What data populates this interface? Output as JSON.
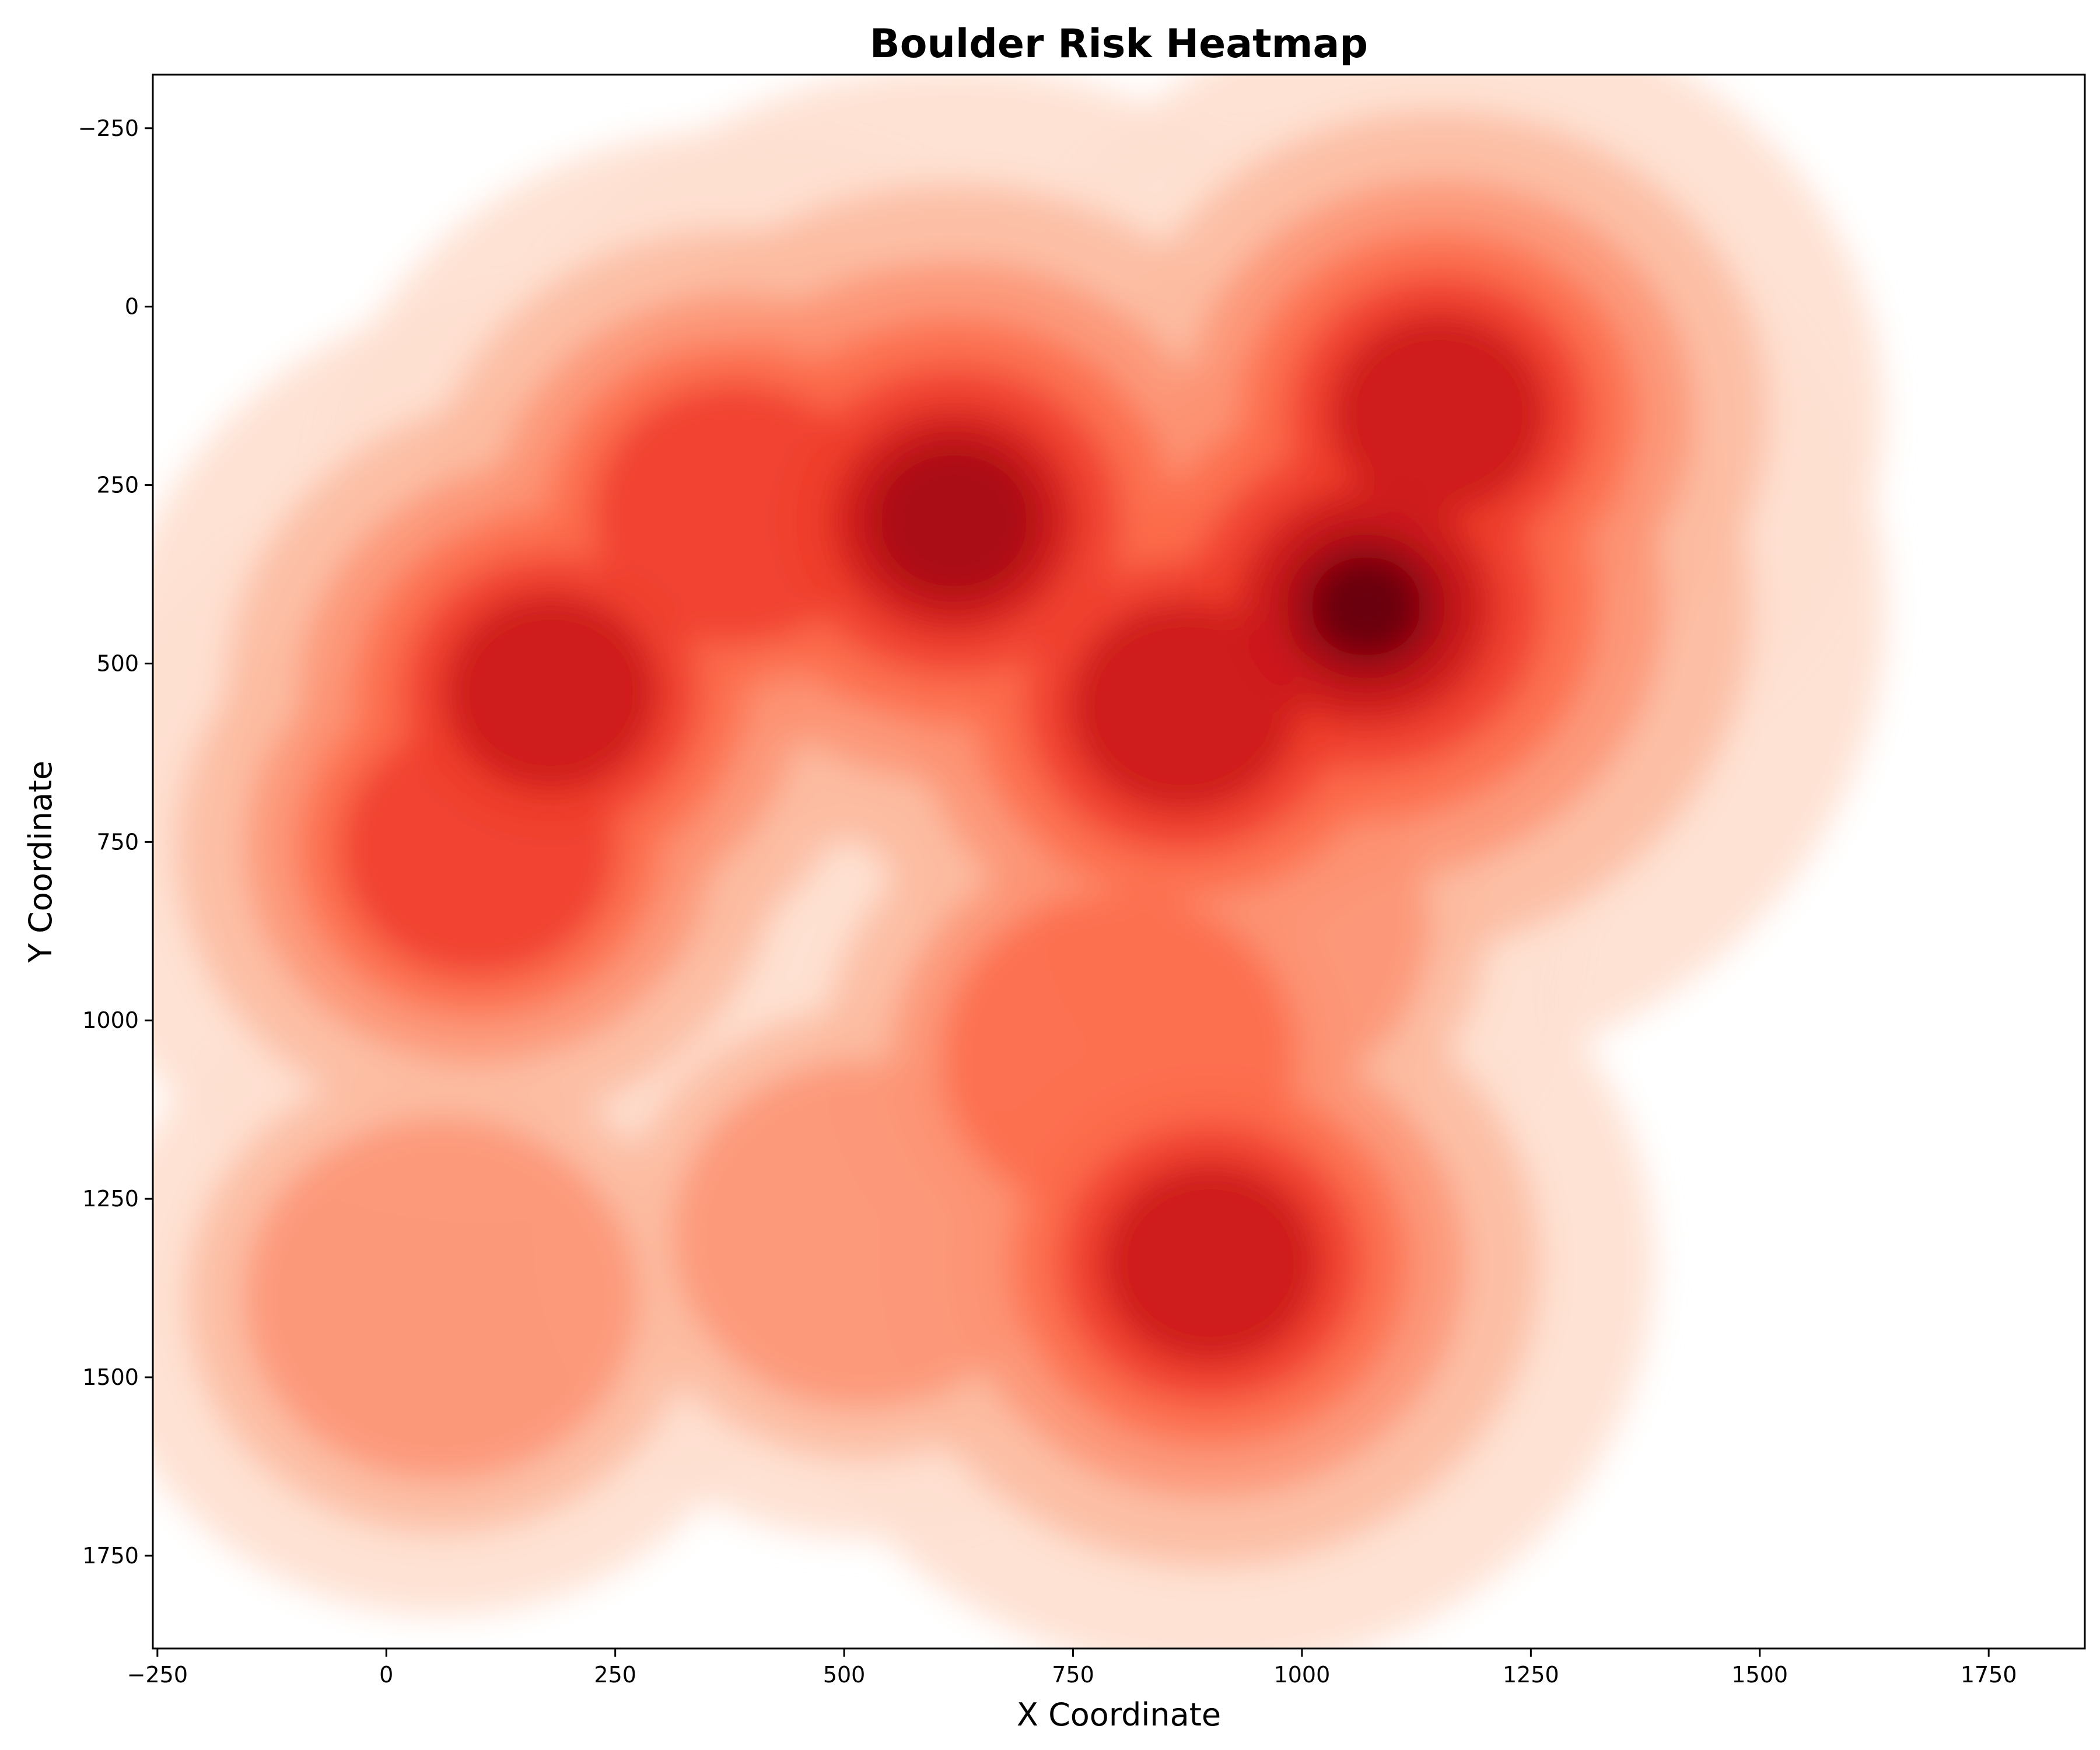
{
  "chart_data": {
    "type": "heatmap",
    "subtype": "kde-density-filled-contours",
    "title": "Boulder Risk Heatmap",
    "xlabel": "X Coordinate",
    "ylabel": "Y Coordinate",
    "xlim": [
      -255,
      1855
    ],
    "ylim": [
      1880,
      -325
    ],
    "y_inverted": true,
    "x_ticks": [
      -250,
      0,
      250,
      500,
      750,
      1000,
      1250,
      1500,
      1750
    ],
    "y_ticks": [
      -250,
      0,
      250,
      500,
      750,
      1000,
      1250,
      1500,
      1750
    ],
    "x_tick_labels": [
      "−250",
      "0",
      "250",
      "500",
      "750",
      "1000",
      "1250",
      "1500",
      "1750"
    ],
    "y_tick_labels": [
      "−250",
      "0",
      "250",
      "500",
      "750",
      "1000",
      "1250",
      "1500",
      "1750"
    ],
    "grid": false,
    "legend": "none",
    "colormap": "Reds",
    "colors": [
      "#fff5f0",
      "#fee0d2",
      "#fcbba1",
      "#fc9272",
      "#fb6a4a",
      "#ef3b2c",
      "#cb181d",
      "#a50f15",
      "#67000d"
    ],
    "density_hotspots": [
      {
        "x": 1070,
        "y": 420,
        "relative_density": 1.0
      },
      {
        "x": 620,
        "y": 300,
        "relative_density": 0.9
      },
      {
        "x": 870,
        "y": 560,
        "relative_density": 0.8
      },
      {
        "x": 380,
        "y": 290,
        "relative_density": 0.62
      },
      {
        "x": 180,
        "y": 540,
        "relative_density": 0.7
      },
      {
        "x": 1150,
        "y": 150,
        "relative_density": 0.72
      },
      {
        "x": 100,
        "y": 760,
        "relative_density": 0.58
      },
      {
        "x": 900,
        "y": 1340,
        "relative_density": 0.72
      },
      {
        "x": 800,
        "y": 1050,
        "relative_density": 0.55
      },
      {
        "x": 60,
        "y": 1390,
        "relative_density": 0.35
      },
      {
        "x": 520,
        "y": 1300,
        "relative_density": 0.3
      },
      {
        "x": 930,
        "y": 870,
        "relative_density": 0.32
      }
    ]
  }
}
